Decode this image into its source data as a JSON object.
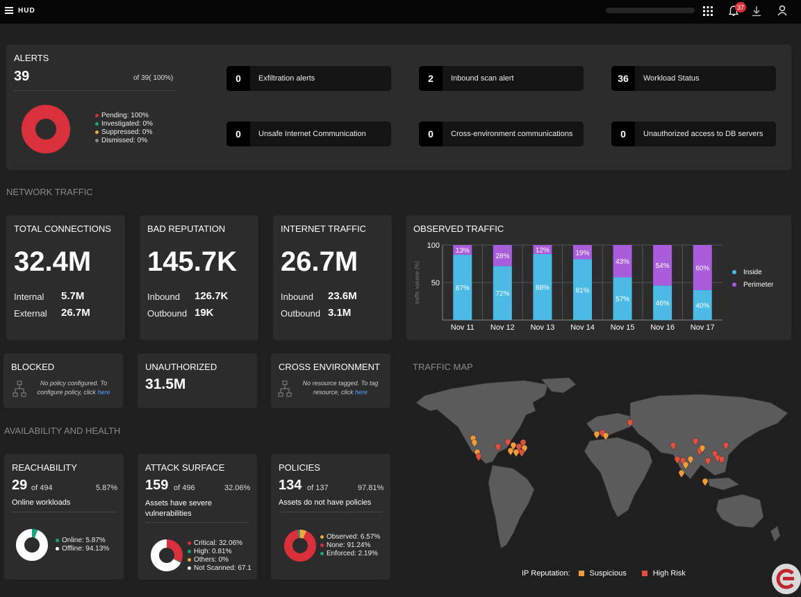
{
  "header": {
    "app_name": "HUD",
    "notif_count": "37"
  },
  "alerts": {
    "title": "ALERTS",
    "count": "39",
    "of_text": "of 39( 100%)",
    "donut": [
      {
        "label": "Pending: 100%",
        "color": "#d9303c",
        "value": 100
      },
      {
        "label": "Investigated: 0%",
        "color": "#1aa57c",
        "value": 0
      },
      {
        "label": "Suppressed: 0%",
        "color": "#f2a93b",
        "value": 0
      },
      {
        "label": "Dismissed: 0%",
        "color": "#8c8c8c",
        "value": 0
      }
    ],
    "chips": [
      {
        "num": "0",
        "label": "Exfiltration alerts"
      },
      {
        "num": "2",
        "label": "Inbound scan alert"
      },
      {
        "num": "36",
        "label": "Workload Status"
      },
      {
        "num": "0",
        "label": "Unsafe Internet Communication"
      },
      {
        "num": "0",
        "label": "Cross-environment communications"
      },
      {
        "num": "0",
        "label": "Unauthorized access to DB servers"
      }
    ]
  },
  "network": {
    "section": "NETWORK TRAFFIC",
    "total": {
      "title": "TOTAL CONNECTIONS",
      "value": "32.4M",
      "k1": "Internal",
      "v1": "5.7M",
      "k2": "External",
      "v2": "26.7M"
    },
    "bad": {
      "title": "BAD REPUTATION",
      "value": "145.7K",
      "k1": "Inbound",
      "v1": "126.7K",
      "k2": "Outbound",
      "v2": "19K"
    },
    "internet": {
      "title": "INTERNET TRAFFIC",
      "value": "26.7M",
      "k1": "Inbound",
      "v1": "23.6M",
      "k2": "Outbound",
      "v2": "3.1M"
    },
    "blocked": {
      "title": "BLOCKED",
      "note": "No policy configured. To configure policy, click",
      "link": "here"
    },
    "unauthorized": {
      "title": "UNAUTHORIZED",
      "value": "31.5M"
    },
    "cross": {
      "title": "CROSS ENVIRONMENT",
      "note": "No resource tagged. To tag resource, click",
      "link": "here"
    }
  },
  "observed": {
    "title": "OBSERVED TRAFFIC",
    "colors": {
      "inside": "#4bbbe6",
      "perimeter": "#a95ddc"
    }
  },
  "chart_data": {
    "type": "bar",
    "stacked": true,
    "title": "OBSERVED TRAFFIC",
    "ylabel": "traffic volume (%)",
    "categories": [
      "Nov 11",
      "Nov 12",
      "Nov 13",
      "Nov 14",
      "Nov 15",
      "Nov 16",
      "Nov 17"
    ],
    "series": [
      {
        "name": "Inside",
        "values": [
          87,
          72,
          88,
          81,
          57,
          46,
          40
        ]
      },
      {
        "name": "Perimeter",
        "values": [
          13,
          28,
          12,
          19,
          43,
          54,
          60
        ]
      }
    ],
    "ylim": [
      0,
      100
    ],
    "yticks": [
      "100",
      "50"
    ],
    "legend": "right"
  },
  "map": {
    "title": "TRAFFIC MAP",
    "legend_label": "IP Reputation:",
    "suspicious": "Suspicious",
    "high": "High Risk",
    "suspicious_color": "#f29b3a",
    "high_color": "#e0503f"
  },
  "health": {
    "section": "AVAILABILITY AND HEALTH",
    "reach": {
      "title": "REACHABILITY",
      "num": "29",
      "of": "of 494",
      "pct": "5.87%",
      "desc": "Online workloads",
      "legend": [
        {
          "label": "Online: 5.87%",
          "color": "#1aa57c",
          "value": 5.87
        },
        {
          "label": "Offline: 94.13%",
          "color": "#ffffff",
          "value": 94.13
        }
      ]
    },
    "attack": {
      "title": "ATTACK SURFACE",
      "num": "159",
      "of": "of 496",
      "pct": "32.06%",
      "desc": "Assets have severe vulnerabilities",
      "legend": [
        {
          "label": "Critical: 32.06%",
          "color": "#d9303c",
          "value": 32.06
        },
        {
          "label": "High: 0.81%",
          "color": "#1aa57c",
          "value": 0.81
        },
        {
          "label": "Others: 0%",
          "color": "#f2a93b",
          "value": 0
        },
        {
          "label": "Not Scanned: 67.1",
          "color": "#ffffff",
          "value": 67.13
        }
      ]
    },
    "policies": {
      "title": "POLICIES",
      "num": "134",
      "of": "of 137",
      "pct": "97.81%",
      "desc": "Assets do not have policies",
      "legend": [
        {
          "label": "Observed: 6.57%",
          "color": "#f2a93b",
          "value": 6.57
        },
        {
          "label": "None: 91.24%",
          "color": "#d9303c",
          "value": 91.24
        },
        {
          "label": "Enforced: 2.19%",
          "color": "#1aa57c",
          "value": 2.19
        }
      ]
    }
  }
}
